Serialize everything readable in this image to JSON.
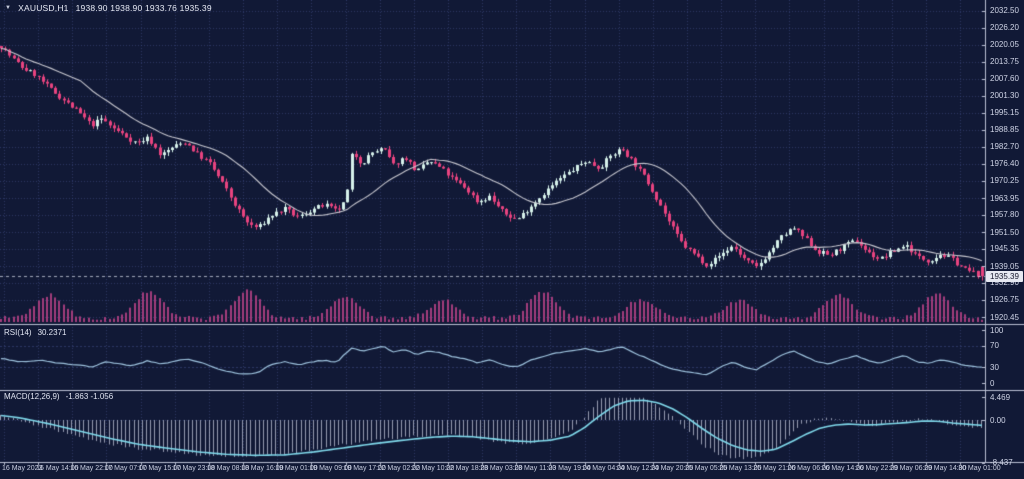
{
  "window": {
    "symbol_label": "XAUUSD,H1",
    "ohlc_label": "1938.90 1938.90 1933.76 1935.39"
  },
  "icons": {
    "symbol_marker": "▼"
  },
  "chart_data": {
    "type": "candlestick",
    "symbol": "XAUUSD",
    "timeframe": "H1",
    "title": "XAUUSD,H1 1938.90 1938.90 1933.76 1935.39",
    "ohlc": {
      "open": 1938.9,
      "high": 1938.9,
      "low": 1933.76,
      "close": 1935.39
    },
    "current_price": 1935.39,
    "current_price_label": "1935.39",
    "price_axis_ticks": [
      "2032.50",
      "2026.20",
      "2020.05",
      "2013.75",
      "2007.60",
      "2001.30",
      "1995.15",
      "1988.85",
      "1982.70",
      "1976.40",
      "1970.25",
      "1963.95",
      "1957.80",
      "1951.50",
      "1945.35",
      "1939.05",
      "1932.90",
      "1926.75",
      "1920.45"
    ],
    "time_axis_ticks": [
      "16 May 2023",
      "16 May 14:00",
      "16 May 22:00",
      "17 May 07:00",
      "17 May 15:00",
      "17 May 23:00",
      "18 May 08:00",
      "18 May 16:00",
      "19 May 01:00",
      "19 May 09:00",
      "19 May 17:00",
      "22 May 02:00",
      "22 May 10:00",
      "22 May 18:00",
      "23 May 03:00",
      "23 May 11:00",
      "23 May 19:00",
      "24 May 04:00",
      "24 May 12:00",
      "24 May 20:00",
      "25 May 05:00",
      "25 May 13:00",
      "25 May 21:00",
      "26 May 06:00",
      "26 May 14:00",
      "26 May 22:00",
      "29 May 06:00",
      "29 May 14:00",
      "30 May 01:00"
    ],
    "ma_period": 20,
    "price_anchors": [
      [
        0.0,
        2019.5
      ],
      [
        0.01,
        2015.5
      ],
      [
        0.022,
        2011.5
      ],
      [
        0.035,
        2009.0
      ],
      [
        0.045,
        2005.5
      ],
      [
        0.058,
        2001.5
      ],
      [
        0.068,
        1998.5
      ],
      [
        0.08,
        1995.0
      ],
      [
        0.092,
        1990.5
      ],
      [
        0.103,
        1993.0
      ],
      [
        0.112,
        1990.0
      ],
      [
        0.125,
        1987.0
      ],
      [
        0.138,
        1984.0
      ],
      [
        0.15,
        1986.0
      ],
      [
        0.163,
        1979.5
      ],
      [
        0.175,
        1982.5
      ],
      [
        0.188,
        1984.5
      ],
      [
        0.2,
        1980.0
      ],
      [
        0.213,
        1976.5
      ],
      [
        0.228,
        1968.0
      ],
      [
        0.24,
        1960.5
      ],
      [
        0.252,
        1954.5
      ],
      [
        0.262,
        1953.0
      ],
      [
        0.275,
        1957.5
      ],
      [
        0.289,
        1960.0
      ],
      [
        0.303,
        1956.8
      ],
      [
        0.316,
        1959.5
      ],
      [
        0.33,
        1961.5
      ],
      [
        0.342,
        1959.0
      ],
      [
        0.352,
        1963.0
      ],
      [
        0.358,
        1981.0
      ],
      [
        0.368,
        1976.5
      ],
      [
        0.378,
        1980.5
      ],
      [
        0.39,
        1982.0
      ],
      [
        0.4,
        1976.0
      ],
      [
        0.412,
        1979.0
      ],
      [
        0.424,
        1973.5
      ],
      [
        0.436,
        1977.5
      ],
      [
        0.448,
        1975.0
      ],
      [
        0.46,
        1971.0
      ],
      [
        0.474,
        1967.5
      ],
      [
        0.486,
        1962.5
      ],
      [
        0.498,
        1964.5
      ],
      [
        0.512,
        1958.5
      ],
      [
        0.526,
        1956.0
      ],
      [
        0.54,
        1961.0
      ],
      [
        0.554,
        1966.0
      ],
      [
        0.568,
        1970.5
      ],
      [
        0.582,
        1974.0
      ],
      [
        0.596,
        1977.5
      ],
      [
        0.61,
        1975.0
      ],
      [
        0.622,
        1979.5
      ],
      [
        0.633,
        1982.0
      ],
      [
        0.645,
        1977.0
      ],
      [
        0.658,
        1970.5
      ],
      [
        0.67,
        1963.0
      ],
      [
        0.682,
        1954.5
      ],
      [
        0.695,
        1947.0
      ],
      [
        0.708,
        1943.0
      ],
      [
        0.72,
        1939.5
      ],
      [
        0.733,
        1943.0
      ],
      [
        0.746,
        1946.5
      ],
      [
        0.758,
        1941.5
      ],
      [
        0.77,
        1938.5
      ],
      [
        0.782,
        1943.5
      ],
      [
        0.795,
        1949.5
      ],
      [
        0.808,
        1953.0
      ],
      [
        0.82,
        1949.0
      ],
      [
        0.832,
        1944.5
      ],
      [
        0.845,
        1943.0
      ],
      [
        0.858,
        1946.0
      ],
      [
        0.872,
        1948.5
      ],
      [
        0.884,
        1944.0
      ],
      [
        0.896,
        1941.5
      ],
      [
        0.91,
        1944.5
      ],
      [
        0.922,
        1947.0
      ],
      [
        0.934,
        1942.5
      ],
      [
        0.946,
        1941.0
      ],
      [
        0.958,
        1943.5
      ],
      [
        0.97,
        1941.5
      ],
      [
        0.982,
        1938.0
      ],
      [
        1.0,
        1935.4
      ]
    ],
    "volume": {
      "present": true,
      "daily_humps": 10
    },
    "rsi": {
      "label": "RSI(14)",
      "current": 30.2371,
      "current_label": "30.2371",
      "scale_ticks": [
        "100",
        "70",
        "30",
        "0"
      ],
      "levels": [
        70,
        30
      ],
      "anchors": [
        [
          0.0,
          46
        ],
        [
          0.02,
          40
        ],
        [
          0.04,
          43
        ],
        [
          0.06,
          37
        ],
        [
          0.08,
          34
        ],
        [
          0.095,
          30
        ],
        [
          0.105,
          40
        ],
        [
          0.12,
          36
        ],
        [
          0.135,
          33
        ],
        [
          0.15,
          42
        ],
        [
          0.163,
          35
        ],
        [
          0.175,
          41
        ],
        [
          0.19,
          45
        ],
        [
          0.205,
          38
        ],
        [
          0.22,
          27
        ],
        [
          0.235,
          20
        ],
        [
          0.25,
          16
        ],
        [
          0.262,
          20
        ],
        [
          0.275,
          35
        ],
        [
          0.29,
          40
        ],
        [
          0.303,
          34
        ],
        [
          0.316,
          40
        ],
        [
          0.33,
          43
        ],
        [
          0.342,
          39
        ],
        [
          0.358,
          67
        ],
        [
          0.368,
          60
        ],
        [
          0.38,
          66
        ],
        [
          0.39,
          69
        ],
        [
          0.4,
          58
        ],
        [
          0.412,
          63
        ],
        [
          0.424,
          54
        ],
        [
          0.436,
          61
        ],
        [
          0.448,
          57
        ],
        [
          0.46,
          50
        ],
        [
          0.474,
          45
        ],
        [
          0.486,
          38
        ],
        [
          0.498,
          44
        ],
        [
          0.512,
          34
        ],
        [
          0.526,
          30
        ],
        [
          0.54,
          43
        ],
        [
          0.554,
          51
        ],
        [
          0.568,
          57
        ],
        [
          0.582,
          61
        ],
        [
          0.596,
          65
        ],
        [
          0.61,
          58
        ],
        [
          0.622,
          64
        ],
        [
          0.633,
          68
        ],
        [
          0.645,
          57
        ],
        [
          0.658,
          47
        ],
        [
          0.67,
          37
        ],
        [
          0.682,
          28
        ],
        [
          0.695,
          22
        ],
        [
          0.708,
          19
        ],
        [
          0.72,
          16
        ],
        [
          0.733,
          30
        ],
        [
          0.746,
          40
        ],
        [
          0.758,
          30
        ],
        [
          0.77,
          25
        ],
        [
          0.782,
          38
        ],
        [
          0.795,
          52
        ],
        [
          0.808,
          60
        ],
        [
          0.82,
          50
        ],
        [
          0.832,
          40
        ],
        [
          0.845,
          36
        ],
        [
          0.858,
          45
        ],
        [
          0.872,
          52
        ],
        [
          0.884,
          42
        ],
        [
          0.896,
          38
        ],
        [
          0.91,
          46
        ],
        [
          0.922,
          52
        ],
        [
          0.934,
          40
        ],
        [
          0.946,
          37
        ],
        [
          0.958,
          44
        ],
        [
          0.97,
          40
        ],
        [
          0.982,
          33
        ],
        [
          1.0,
          30.24
        ]
      ]
    },
    "macd": {
      "label": "MACD(12,26,9)",
      "macd_current": -1.863,
      "signal_current": -1.056,
      "values_label": "-1.863 -1.056",
      "scale_ticks": [
        "4.469",
        "0.00",
        "-8.437"
      ],
      "anchors": [
        [
          0.0,
          0.9
        ],
        [
          0.02,
          0.4
        ],
        [
          0.05,
          -0.8
        ],
        [
          0.08,
          -2.2
        ],
        [
          0.11,
          -3.6
        ],
        [
          0.14,
          -4.8
        ],
        [
          0.17,
          -5.6
        ],
        [
          0.2,
          -6.3
        ],
        [
          0.23,
          -6.8
        ],
        [
          0.26,
          -7.0
        ],
        [
          0.29,
          -6.9
        ],
        [
          0.32,
          -6.3
        ],
        [
          0.35,
          -5.5
        ],
        [
          0.38,
          -4.7
        ],
        [
          0.41,
          -4.0
        ],
        [
          0.44,
          -3.4
        ],
        [
          0.46,
          -3.2
        ],
        [
          0.48,
          -3.3
        ],
        [
          0.5,
          -3.7
        ],
        [
          0.52,
          -4.1
        ],
        [
          0.54,
          -4.3
        ],
        [
          0.56,
          -4.0
        ],
        [
          0.58,
          -3.2
        ],
        [
          0.595,
          -1.5
        ],
        [
          0.61,
          0.8
        ],
        [
          0.625,
          2.8
        ],
        [
          0.64,
          3.8
        ],
        [
          0.655,
          3.9
        ],
        [
          0.67,
          3.4
        ],
        [
          0.685,
          2.2
        ],
        [
          0.7,
          0.4
        ],
        [
          0.715,
          -1.7
        ],
        [
          0.73,
          -3.6
        ],
        [
          0.745,
          -5.0
        ],
        [
          0.76,
          -5.9
        ],
        [
          0.775,
          -6.2
        ],
        [
          0.79,
          -5.8
        ],
        [
          0.805,
          -4.4
        ],
        [
          0.82,
          -2.9
        ],
        [
          0.835,
          -1.6
        ],
        [
          0.85,
          -1.0
        ],
        [
          0.865,
          -0.8
        ],
        [
          0.88,
          -1.0
        ],
        [
          0.895,
          -0.9
        ],
        [
          0.91,
          -0.7
        ],
        [
          0.925,
          -0.5
        ],
        [
          0.94,
          -0.2
        ],
        [
          0.955,
          -0.25
        ],
        [
          0.97,
          -0.6
        ],
        [
          1.0,
          -1.06
        ]
      ]
    },
    "colors": {
      "background": "#111936",
      "grid": "#44508a",
      "bull": "#d6f1ea",
      "bear": "#e8437f",
      "ma": "#c6c6ce",
      "volume": "#a33c7c",
      "rsi_line": "#9ec3de",
      "macd_signal": "#7fd8ea",
      "macd_histogram": "#b6bccf",
      "separator": "#b9bfd2",
      "axis_text": "#cfd4e6",
      "price_box_bg": "#e6e9f2",
      "price_box_text": "#14172c"
    }
  }
}
